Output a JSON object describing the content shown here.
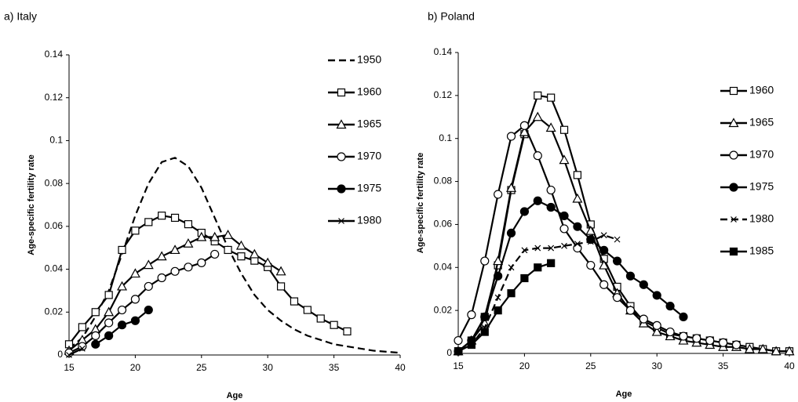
{
  "chart_data": [
    {
      "type": "line",
      "title": "a) Italy",
      "xlabel": "Age",
      "ylabel": "Age-specific fertility rate",
      "xlim": [
        15,
        40
      ],
      "ylim": [
        0,
        0.14
      ],
      "xticks": [
        15,
        20,
        25,
        30,
        35,
        40
      ],
      "yticks": [
        0,
        0.02,
        0.04,
        0.06,
        0.08,
        0.1,
        0.12,
        0.14
      ],
      "color": "#000000",
      "series": [
        {
          "name": "1950",
          "marker": "none",
          "dashed": true,
          "x": [
            15,
            16,
            17,
            18,
            19,
            20,
            21,
            22,
            23,
            24,
            25,
            26,
            27,
            28,
            29,
            30,
            31,
            32,
            33,
            34,
            35,
            36,
            37,
            38,
            39,
            40
          ],
          "values": [
            0.003,
            0.008,
            0.018,
            0.03,
            0.047,
            0.065,
            0.08,
            0.09,
            0.092,
            0.088,
            0.078,
            0.064,
            0.05,
            0.038,
            0.028,
            0.021,
            0.016,
            0.012,
            0.009,
            0.007,
            0.005,
            0.004,
            0.003,
            0.002,
            0.0015,
            0.001
          ]
        },
        {
          "name": "1960",
          "marker": "square",
          "x": [
            15,
            16,
            17,
            18,
            19,
            20,
            21,
            22,
            23,
            24,
            25,
            26,
            27,
            28,
            29,
            30,
            31,
            32,
            33,
            34,
            35,
            36
          ],
          "values": [
            0.005,
            0.013,
            0.02,
            0.028,
            0.049,
            0.058,
            0.062,
            0.065,
            0.064,
            0.061,
            0.057,
            0.053,
            0.049,
            0.046,
            0.044,
            0.041,
            0.032,
            0.025,
            0.021,
            0.017,
            0.014,
            0.011
          ]
        },
        {
          "name": "1965",
          "marker": "triangle",
          "x": [
            15,
            16,
            17,
            18,
            19,
            20,
            21,
            22,
            23,
            24,
            25,
            26,
            27,
            28,
            29,
            30,
            31
          ],
          "values": [
            0.002,
            0.007,
            0.012,
            0.02,
            0.032,
            0.038,
            0.042,
            0.046,
            0.049,
            0.052,
            0.055,
            0.055,
            0.056,
            0.051,
            0.047,
            0.043,
            0.039
          ]
        },
        {
          "name": "1970",
          "marker": "circle",
          "x": [
            15,
            16,
            17,
            18,
            19,
            20,
            21,
            22,
            23,
            24,
            25,
            26
          ],
          "values": [
            0.001,
            0.004,
            0.009,
            0.015,
            0.021,
            0.026,
            0.032,
            0.036,
            0.039,
            0.041,
            0.043,
            0.047
          ]
        },
        {
          "name": "1975",
          "marker": "filled-circle",
          "x": [
            17,
            18,
            19,
            20,
            21
          ],
          "values": [
            0.005,
            0.009,
            0.014,
            0.016,
            0.021
          ]
        },
        {
          "name": "1980",
          "marker": "x",
          "x": [
            15,
            16
          ],
          "values": [
            0.0,
            0.003
          ]
        }
      ]
    },
    {
      "type": "line",
      "title": "b) Poland",
      "xlabel": "Age",
      "ylabel": "Age-specific fertility rate",
      "xlim": [
        15,
        40
      ],
      "ylim": [
        0,
        0.14
      ],
      "xticks": [
        15,
        20,
        25,
        30,
        35,
        40
      ],
      "yticks": [
        0,
        0.02,
        0.04,
        0.06,
        0.08,
        0.1,
        0.12,
        0.14
      ],
      "color": "#000000",
      "series": [
        {
          "name": "1960",
          "marker": "square",
          "x": [
            15,
            16,
            17,
            18,
            19,
            20,
            21,
            22,
            23,
            24,
            25,
            26,
            27,
            28,
            29,
            30,
            31,
            32,
            33,
            34,
            35,
            36,
            37,
            38,
            39,
            40
          ],
          "values": [
            0.001,
            0.006,
            0.017,
            0.041,
            0.076,
            0.102,
            0.12,
            0.119,
            0.104,
            0.083,
            0.06,
            0.044,
            0.031,
            0.022,
            0.015,
            0.012,
            0.009,
            0.008,
            0.007,
            0.006,
            0.005,
            0.004,
            0.003,
            0.002,
            0.001,
            0.001
          ]
        },
        {
          "name": "1965",
          "marker": "triangle",
          "x": [
            15,
            16,
            17,
            18,
            19,
            20,
            21,
            22,
            23,
            24,
            25,
            26,
            27,
            28,
            29,
            30,
            31,
            32,
            33,
            34,
            35,
            36,
            37,
            38,
            39,
            40
          ],
          "values": [
            0.001,
            0.006,
            0.014,
            0.043,
            0.077,
            0.103,
            0.11,
            0.105,
            0.09,
            0.072,
            0.057,
            0.041,
            0.028,
            0.02,
            0.014,
            0.01,
            0.008,
            0.006,
            0.005,
            0.004,
            0.003,
            0.003,
            0.002,
            0.002,
            0.001,
            0.001
          ]
        },
        {
          "name": "1970",
          "marker": "circle",
          "x": [
            15,
            16,
            17,
            18,
            19,
            20,
            21,
            22,
            23,
            24,
            25,
            26,
            27,
            28,
            29,
            30,
            31,
            32,
            33,
            34,
            35,
            36
          ],
          "values": [
            0.006,
            0.018,
            0.043,
            0.074,
            0.101,
            0.106,
            0.092,
            0.076,
            0.058,
            0.049,
            0.041,
            0.032,
            0.026,
            0.02,
            0.016,
            0.013,
            0.01,
            0.008,
            0.007,
            0.006,
            0.005,
            0.004
          ]
        },
        {
          "name": "1975",
          "marker": "filled-circle",
          "x": [
            15,
            16,
            17,
            18,
            19,
            20,
            21,
            22,
            23,
            24,
            25,
            26,
            27,
            28,
            29,
            30,
            31,
            32
          ],
          "values": [
            0.001,
            0.006,
            0.017,
            0.036,
            0.056,
            0.066,
            0.071,
            0.068,
            0.064,
            0.059,
            0.053,
            0.048,
            0.043,
            0.036,
            0.032,
            0.027,
            0.022,
            0.017
          ]
        },
        {
          "name": "1980",
          "marker": "x",
          "dashed": true,
          "x": [
            15,
            16,
            17,
            18,
            19,
            20,
            21,
            22,
            23,
            24,
            25,
            26,
            27
          ],
          "values": [
            0.001,
            0.004,
            0.012,
            0.026,
            0.04,
            0.048,
            0.049,
            0.049,
            0.05,
            0.051,
            0.052,
            0.055,
            0.053
          ]
        },
        {
          "name": "1985",
          "marker": "filled-square",
          "x": [
            15,
            16,
            17,
            18,
            19,
            20,
            21,
            22
          ],
          "values": [
            0.001,
            0.004,
            0.01,
            0.02,
            0.028,
            0.035,
            0.04,
            0.042
          ]
        }
      ]
    }
  ]
}
